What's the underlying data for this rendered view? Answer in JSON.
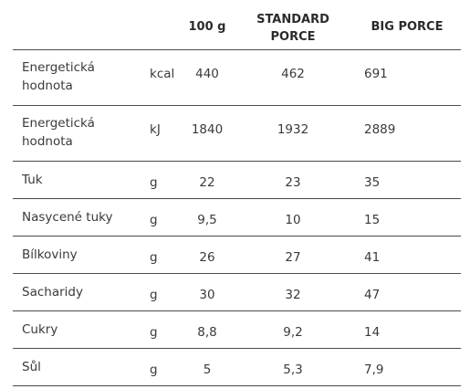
{
  "header": {
    "col1": "100 g",
    "col2_line1": "STANDARD",
    "col2_line2": "PORCE",
    "col3": "BIG PORCE"
  },
  "rows": [
    {
      "name_line1": "Energetická",
      "name_line2": "hodnota",
      "unit": "kcal",
      "v100": "440",
      "standard": "462",
      "big": "691"
    },
    {
      "name_line1": "Energetická",
      "name_line2": "hodnota",
      "unit": "kJ",
      "v100": "1840",
      "standard": "1932",
      "big": "2889"
    },
    {
      "name": "Tuk",
      "unit": "g",
      "v100": "22",
      "standard": "23",
      "big": "35"
    },
    {
      "name": "Nasycené tuky",
      "unit": "g",
      "v100": "9,5",
      "standard": "10",
      "big": "15"
    },
    {
      "name": "Bílkoviny",
      "unit": "g",
      "v100": "26",
      "standard": "27",
      "big": "41"
    },
    {
      "name": "Sacharidy",
      "unit": "g",
      "v100": "30",
      "standard": "32",
      "big": "47"
    },
    {
      "name": "Cukry",
      "unit": "g",
      "v100": "8,8",
      "standard": "9,2",
      "big": "14"
    },
    {
      "name": "Sůl",
      "unit": "g",
      "v100": "5",
      "standard": "5,3",
      "big": "7,9"
    }
  ]
}
